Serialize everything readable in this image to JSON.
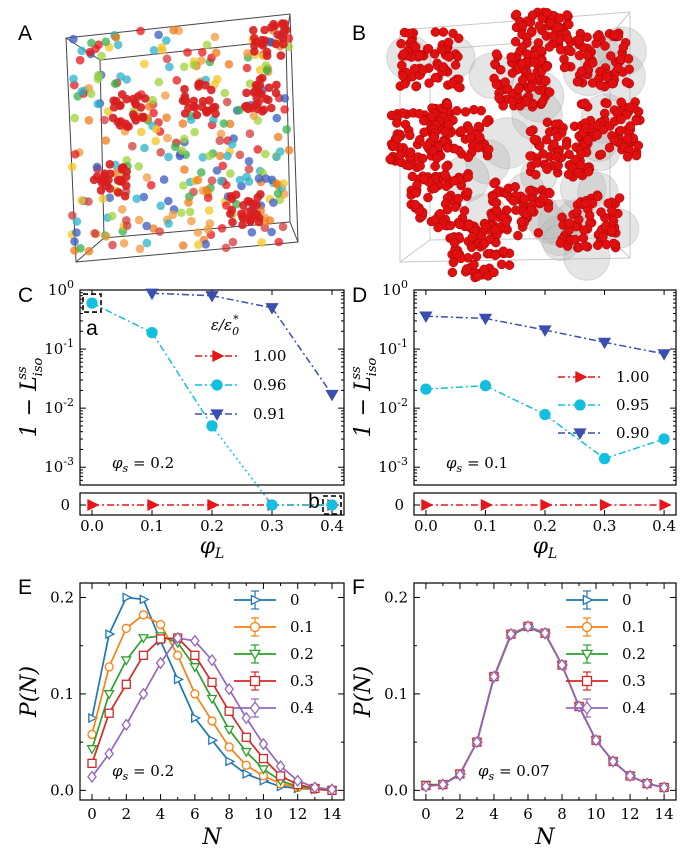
{
  "panel_labels": [
    "A",
    "B",
    "C",
    "D",
    "E",
    "F"
  ],
  "colors": {
    "red": "#e8161b",
    "cyan": "#13bfe0",
    "blue": "#3a4fb0",
    "E0": "#1f77b4",
    "E1": "#ff7f0e",
    "E2": "#2ca02c",
    "E3": "#d62728",
    "E4": "#9467bd"
  },
  "images": {
    "A": {
      "icon": "particle-box-colored-icon"
    },
    "B": {
      "icon": "particle-box-red-spheres-icon"
    }
  },
  "chart_data": [
    {
      "id": "C",
      "type": "line",
      "xlabel": "φ_L",
      "ylabel": "1 − L_iso^ss",
      "yscale": "log-with-zero-break",
      "xlim": [
        -0.02,
        0.42
      ],
      "ylim": [
        0.0005,
        1
      ],
      "xticks": [
        "0.0",
        "0.1",
        "0.2",
        "0.3",
        "0.4"
      ],
      "yticks": [
        "10^0",
        "10^-1",
        "10^-2",
        "10^-3",
        "0"
      ],
      "legend_title": "ε/ε₀*",
      "annotation": "φ_s = 0.2",
      "point_labels": [
        {
          "text": "a",
          "x": 0.0,
          "y": 0.6
        },
        {
          "text": "b",
          "x": 0.4,
          "y": 0
        }
      ],
      "series": [
        {
          "name": "1.00",
          "color": "red",
          "marker": "triangle-right",
          "x": [
            0,
            0.1,
            0.2,
            0.3,
            0.4
          ],
          "y": [
            0,
            0,
            0,
            0,
            0
          ]
        },
        {
          "name": "0.96",
          "color": "cyan",
          "marker": "circle",
          "x": [
            0,
            0.1,
            0.2,
            0.3,
            0.4
          ],
          "y": [
            0.6,
            0.19,
            0.005,
            0,
            0
          ]
        },
        {
          "name": "0.91",
          "color": "blue",
          "marker": "triangle-down",
          "x": [
            0.1,
            0.2,
            0.3,
            0.4
          ],
          "y": [
            0.88,
            0.8,
            0.5,
            0.017
          ]
        }
      ]
    },
    {
      "id": "D",
      "type": "line",
      "xlabel": "φ_L",
      "ylabel": "1 − L_iso^ss",
      "yscale": "log-with-zero-break",
      "xlim": [
        -0.02,
        0.42
      ],
      "ylim": [
        0.0005,
        1
      ],
      "xticks": [
        "0.0",
        "0.1",
        "0.2",
        "0.3",
        "0.4"
      ],
      "yticks": [
        "10^0",
        "10^-1",
        "10^-2",
        "10^-3",
        "0"
      ],
      "annotation": "φ_s = 0.1",
      "series": [
        {
          "name": "1.00",
          "color": "red",
          "marker": "triangle-right",
          "x": [
            0,
            0.1,
            0.2,
            0.3,
            0.4
          ],
          "y": [
            0,
            0,
            0,
            0,
            0
          ]
        },
        {
          "name": "0.95",
          "color": "cyan",
          "marker": "circle",
          "x": [
            0,
            0.1,
            0.2,
            0.3,
            0.4
          ],
          "y": [
            0.021,
            0.024,
            0.0078,
            0.0014,
            0.003
          ]
        },
        {
          "name": "0.90",
          "color": "blue",
          "marker": "triangle-down",
          "x": [
            0,
            0.1,
            0.2,
            0.3,
            0.4
          ],
          "y": [
            0.36,
            0.33,
            0.21,
            0.13,
            0.083
          ]
        }
      ]
    },
    {
      "id": "E",
      "type": "line",
      "xlabel": "N",
      "ylabel": "P(N)",
      "xlim": [
        -0.7,
        14.7
      ],
      "ylim": [
        -0.01,
        0.215
      ],
      "xticks": [
        "0",
        "2",
        "4",
        "6",
        "8",
        "10",
        "12",
        "14"
      ],
      "yticks": [
        "0.0",
        "0.1",
        "0.2"
      ],
      "annotation": "φ_s = 0.2",
      "series": [
        {
          "name": "0",
          "color": "E0",
          "marker": "triangle-right",
          "x": [
            0,
            1,
            2,
            3,
            4,
            5,
            6,
            7,
            8,
            9,
            10,
            11,
            12,
            13,
            14
          ],
          "y": [
            0.075,
            0.162,
            0.2,
            0.198,
            0.155,
            0.115,
            0.075,
            0.052,
            0.03,
            0.017,
            0.01,
            0.004,
            0.002,
            0.001,
            0.0
          ]
        },
        {
          "name": "0.1",
          "color": "E1",
          "marker": "circle",
          "x": [
            0,
            1,
            2,
            3,
            4,
            5,
            6,
            7,
            8,
            9,
            10,
            11,
            12,
            13,
            14
          ],
          "y": [
            0.058,
            0.128,
            0.168,
            0.182,
            0.172,
            0.14,
            0.1,
            0.072,
            0.045,
            0.026,
            0.015,
            0.007,
            0.003,
            0.001,
            0.0
          ]
        },
        {
          "name": "0.2",
          "color": "E2",
          "marker": "triangle-down",
          "x": [
            0,
            1,
            2,
            3,
            4,
            5,
            6,
            7,
            8,
            9,
            10,
            11,
            12,
            13,
            14
          ],
          "y": [
            0.043,
            0.1,
            0.135,
            0.158,
            0.16,
            0.153,
            0.128,
            0.095,
            0.063,
            0.04,
            0.022,
            0.01,
            0.004,
            0.002,
            0.0
          ]
        },
        {
          "name": "0.3",
          "color": "E3",
          "marker": "square",
          "x": [
            0,
            1,
            2,
            3,
            4,
            5,
            6,
            7,
            8,
            9,
            10,
            11,
            12,
            13,
            14
          ],
          "y": [
            0.028,
            0.08,
            0.11,
            0.14,
            0.157,
            0.158,
            0.14,
            0.112,
            0.082,
            0.055,
            0.033,
            0.015,
            0.006,
            0.002,
            0.0
          ]
        },
        {
          "name": "0.4",
          "color": "E4",
          "marker": "diamond",
          "x": [
            0,
            1,
            2,
            3,
            4,
            5,
            6,
            7,
            8,
            9,
            10,
            11,
            12,
            13,
            14
          ],
          "y": [
            0.014,
            0.038,
            0.068,
            0.1,
            0.132,
            0.158,
            0.155,
            0.135,
            0.105,
            0.075,
            0.048,
            0.025,
            0.01,
            0.003,
            0.001
          ]
        }
      ]
    },
    {
      "id": "F",
      "type": "line",
      "xlabel": "N",
      "ylabel": "P(N)",
      "xlim": [
        -0.7,
        14.7
      ],
      "ylim": [
        -0.01,
        0.215
      ],
      "xticks": [
        "0",
        "2",
        "4",
        "6",
        "8",
        "10",
        "12",
        "14"
      ],
      "yticks": [
        "0.0",
        "0.1",
        "0.2"
      ],
      "annotation": "φ_s = 0.07",
      "series": [
        {
          "name": "0",
          "color": "E0",
          "marker": "triangle-right",
          "x": [
            0,
            1,
            2,
            3,
            4,
            5,
            6,
            7,
            8,
            9,
            10,
            11,
            12,
            13,
            14
          ],
          "y": [
            0.005,
            0.006,
            0.017,
            0.05,
            0.118,
            0.162,
            0.17,
            0.163,
            0.13,
            0.087,
            0.052,
            0.03,
            0.015,
            0.007,
            0.003
          ]
        },
        {
          "name": "0.1",
          "color": "E1",
          "marker": "circle",
          "x": [
            0,
            1,
            2,
            3,
            4,
            5,
            6,
            7,
            8,
            9,
            10,
            11,
            12,
            13,
            14
          ],
          "y": [
            0.005,
            0.006,
            0.017,
            0.05,
            0.118,
            0.162,
            0.17,
            0.163,
            0.13,
            0.087,
            0.052,
            0.03,
            0.015,
            0.007,
            0.003
          ]
        },
        {
          "name": "0.2",
          "color": "E2",
          "marker": "triangle-down",
          "x": [
            0,
            1,
            2,
            3,
            4,
            5,
            6,
            7,
            8,
            9,
            10,
            11,
            12,
            13,
            14
          ],
          "y": [
            0.006,
            0.006,
            0.017,
            0.05,
            0.117,
            0.161,
            0.169,
            0.162,
            0.13,
            0.087,
            0.052,
            0.03,
            0.015,
            0.007,
            0.003
          ]
        },
        {
          "name": "0.3",
          "color": "E3",
          "marker": "square",
          "x": [
            0,
            1,
            2,
            3,
            4,
            5,
            6,
            7,
            8,
            9,
            10,
            11,
            12,
            13,
            14
          ],
          "y": [
            0.005,
            0.006,
            0.017,
            0.05,
            0.118,
            0.162,
            0.17,
            0.163,
            0.13,
            0.087,
            0.052,
            0.03,
            0.015,
            0.007,
            0.003
          ]
        },
        {
          "name": "0.4",
          "color": "E4",
          "marker": "diamond",
          "x": [
            0,
            1,
            2,
            3,
            4,
            5,
            6,
            7,
            8,
            9,
            10,
            11,
            12,
            13,
            14
          ],
          "y": [
            0.004,
            0.006,
            0.016,
            0.05,
            0.118,
            0.162,
            0.17,
            0.163,
            0.13,
            0.087,
            0.052,
            0.03,
            0.015,
            0.007,
            0.003
          ]
        }
      ]
    }
  ]
}
